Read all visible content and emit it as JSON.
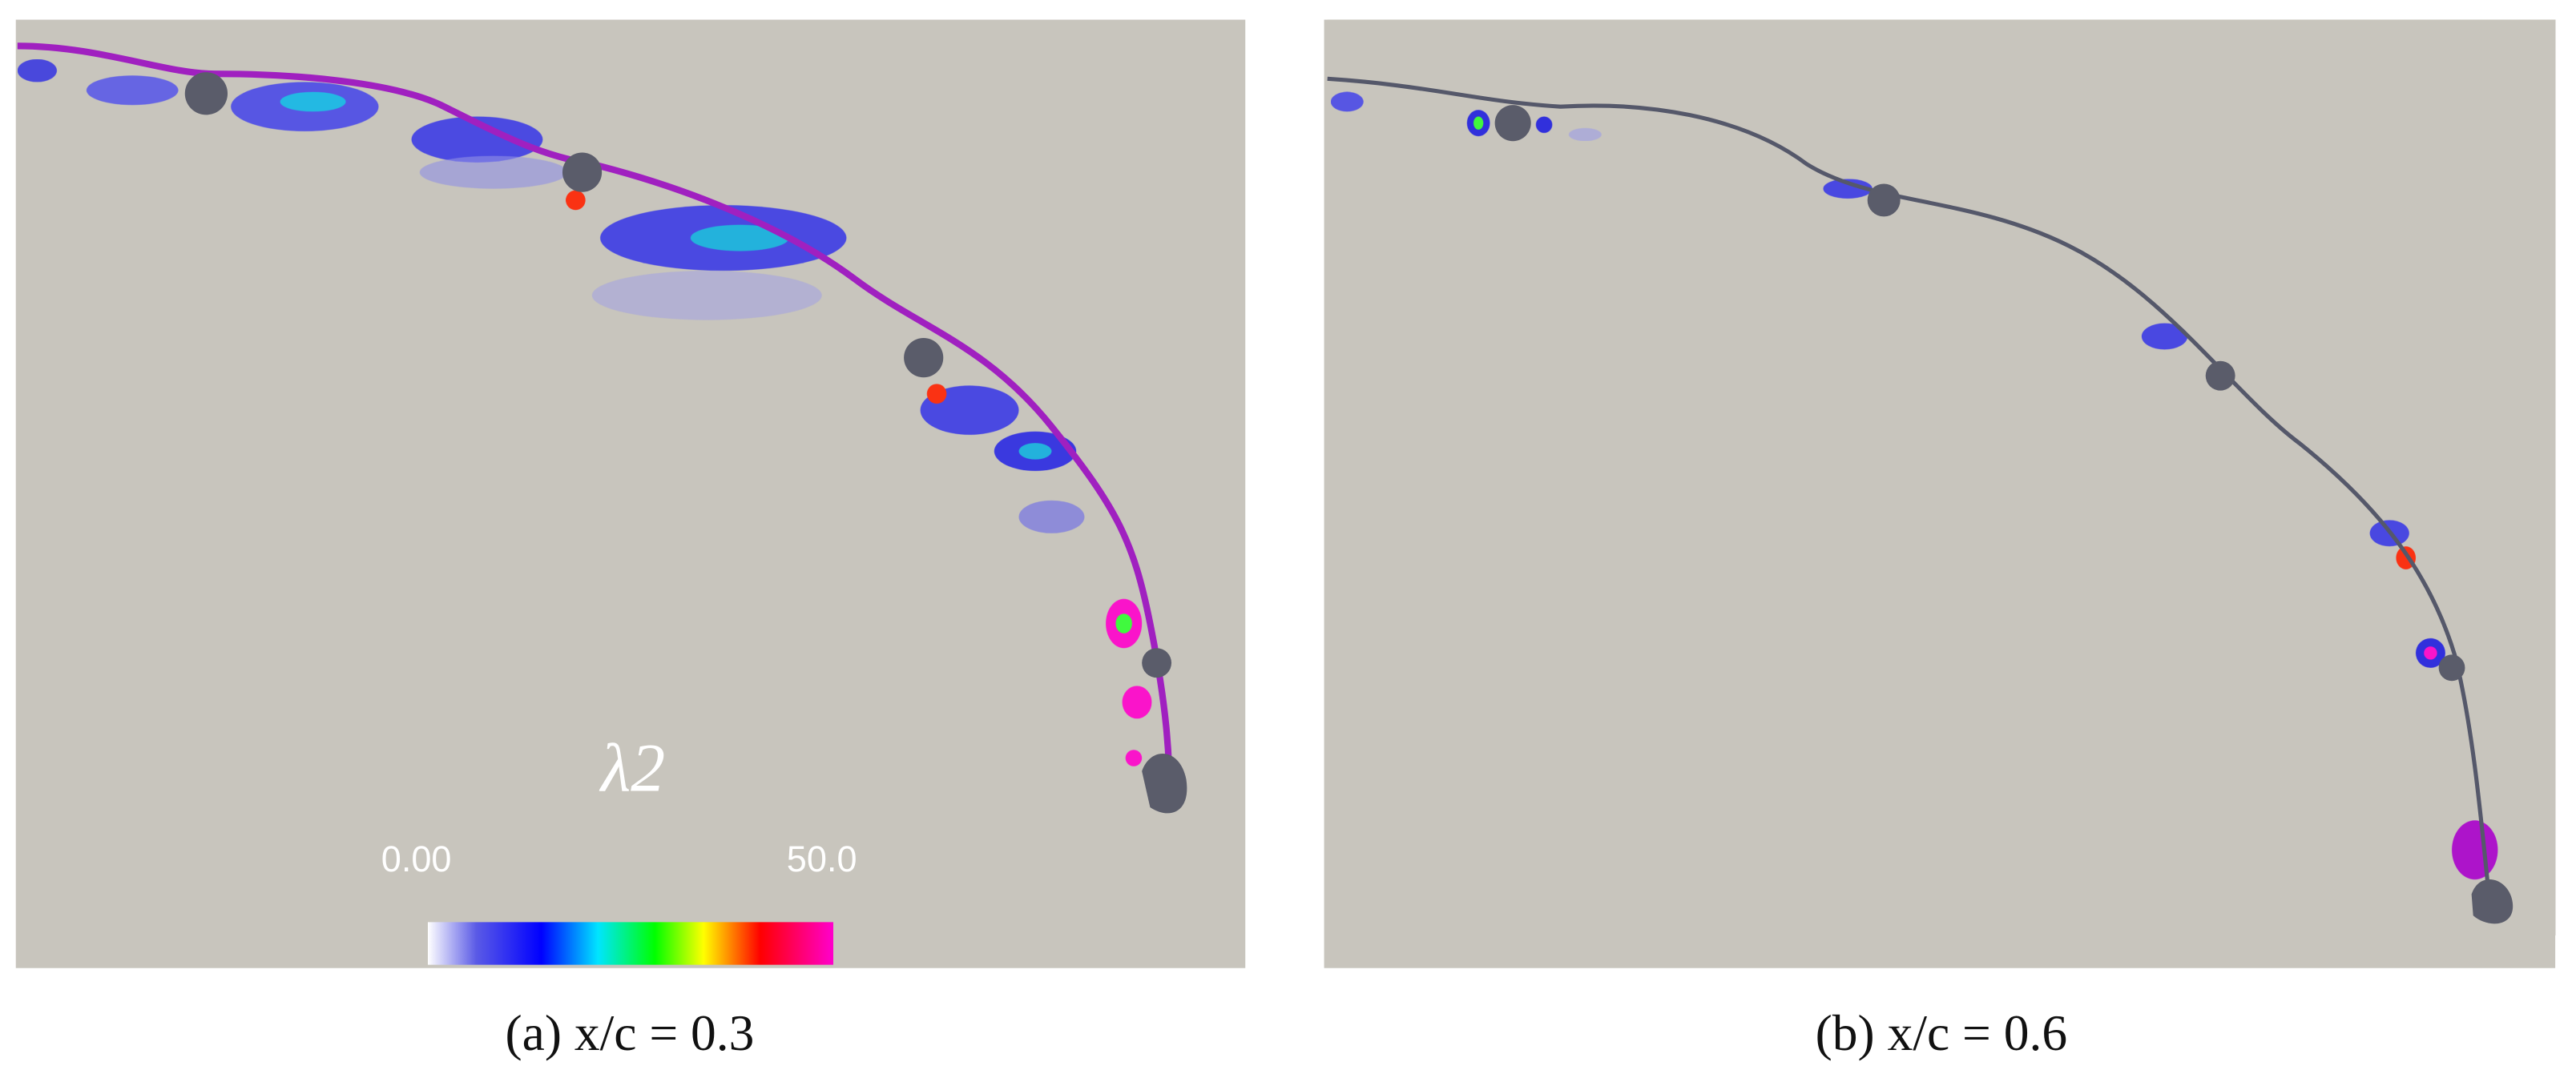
{
  "panels": [
    {
      "caption": "(a) x/c = 0.3"
    },
    {
      "caption": "(b) x/c = 0.6"
    }
  ],
  "colorbar": {
    "title": "λ2",
    "min_label": "0.00",
    "max_label": "50.0"
  }
}
